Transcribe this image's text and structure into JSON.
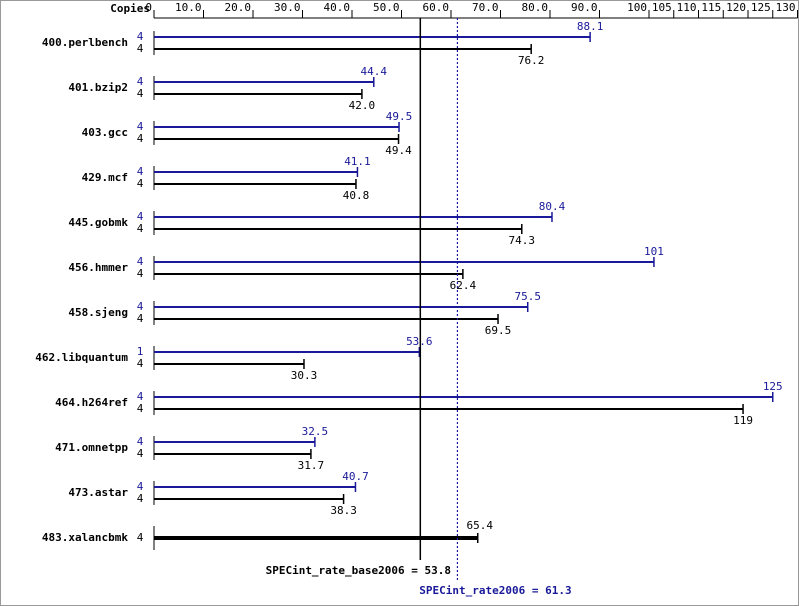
{
  "chart_data": {
    "type": "bar",
    "orientation": "horizontal",
    "copies_label": "Copies",
    "categories": [
      "400.perlbench",
      "401.bzip2",
      "403.gcc",
      "429.mcf",
      "445.gobmk",
      "456.hmmer",
      "458.sjeng",
      "462.libquantum",
      "464.h264ref",
      "471.omnetpp",
      "473.astar",
      "483.xalancbmk"
    ],
    "series": [
      {
        "color": "#191999",
        "values": [
          88.1,
          44.4,
          49.5,
          41.1,
          80.4,
          101,
          75.5,
          53.6,
          125,
          32.5,
          40.7,
          null
        ],
        "value_labels": [
          "88.1",
          "44.4",
          "49.5",
          "41.1",
          "80.4",
          "101",
          "75.5",
          "53.6",
          "125",
          "32.5",
          "40.7",
          null
        ],
        "copies": [
          4,
          4,
          4,
          4,
          4,
          4,
          4,
          1,
          4,
          4,
          4,
          null
        ]
      },
      {
        "color": "#000000",
        "values": [
          76.2,
          42.0,
          49.4,
          40.8,
          74.3,
          62.4,
          69.5,
          30.3,
          119,
          31.7,
          38.3,
          65.4
        ],
        "value_labels": [
          "76.2",
          "42.0",
          "49.4",
          "40.8",
          "74.3",
          "62.4",
          "69.5",
          "30.3",
          "119",
          "31.7",
          "38.3",
          "65.4"
        ],
        "copies": [
          4,
          4,
          4,
          4,
          4,
          4,
          4,
          4,
          4,
          4,
          4,
          4
        ]
      }
    ],
    "xlim": [
      0,
      130
    ],
    "xticks": [
      0,
      {
        "value": 10,
        "label": "10.0"
      },
      {
        "value": 20,
        "label": "20.0"
      },
      {
        "value": 30,
        "label": "30.0"
      },
      {
        "value": 40,
        "label": "40.0"
      },
      {
        "value": 50,
        "label": "50.0"
      },
      {
        "value": 60,
        "label": "60.0"
      },
      {
        "value": 70,
        "label": "70.0"
      },
      {
        "value": 80,
        "label": "80.0"
      },
      {
        "value": 90,
        "label": "90.0"
      },
      100,
      105,
      110,
      115,
      120,
      125,
      130
    ],
    "reference_lines": [
      {
        "value": 53.8,
        "label": "SPECint_rate_base2006 = 53.8",
        "color": "#000000",
        "dashed": false
      },
      {
        "value": 61.3,
        "label": "SPECint_rate2006 = 61.3",
        "color": "#191999",
        "dashed": true
      }
    ]
  }
}
